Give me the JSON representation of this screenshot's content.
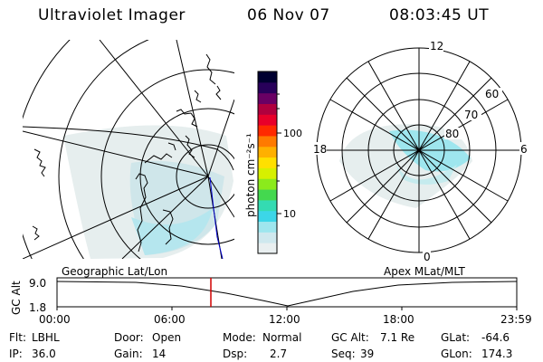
{
  "header": {
    "title": "Ultraviolet Imager",
    "date": "06 Nov 07",
    "time": "08:03:45 UT"
  },
  "colorbar": {
    "label": "photon cm⁻²s⁻¹",
    "ticks": [
      "100",
      "10"
    ],
    "scale": "log",
    "colors": [
      "#e9eff0",
      "#cfe8ee",
      "#9ee6ee",
      "#3cd6e8",
      "#34dbb2",
      "#44d84f",
      "#8bea1c",
      "#d6f000",
      "#ffe000",
      "#ffb000",
      "#ff7a00",
      "#ff2a00",
      "#e8002a",
      "#b0003e",
      "#6a0064",
      "#28005a",
      "#000030"
    ]
  },
  "geo_panel": {
    "label": "Geographic Lat/Lon"
  },
  "polar_panel": {
    "label": "Apex MLat/MLT",
    "mlt_labels": {
      "top": "12",
      "left": "18",
      "right": "6",
      "bottom": "0"
    },
    "lat_labels": [
      "60",
      "70",
      "80"
    ]
  },
  "altitude_plot": {
    "ylabel": "GC Alt",
    "yticks": [
      "9.0",
      "1.8"
    ],
    "xticks": [
      "00:00",
      "06:00",
      "12:00",
      "18:00",
      "23:59"
    ],
    "marker_time": "08:03"
  },
  "info": {
    "flt_label": "Flt:",
    "flt_value": "LBHL",
    "ip_label": "IP:",
    "ip_value": "36.0",
    "door_label": "Door:",
    "door_value": "Open",
    "gain_label": "Gain:",
    "gain_value": "14",
    "mode_label": "Mode:",
    "mode_value": "Normal",
    "dsp_label": "Dsp:",
    "dsp_value": "2.7",
    "gcalt_label": "GC Alt:",
    "gcalt_value": "7.1 Re",
    "seq_label": "Seq:",
    "seq_value": "39",
    "glat_label": "GLat:",
    "glat_value": "-64.6",
    "glon_label": "GLon:",
    "glon_value": "174.3"
  },
  "accent_colors": {
    "marker": "#d00000",
    "aurora": "#9ee6ee",
    "terminator": "#0000cc"
  }
}
